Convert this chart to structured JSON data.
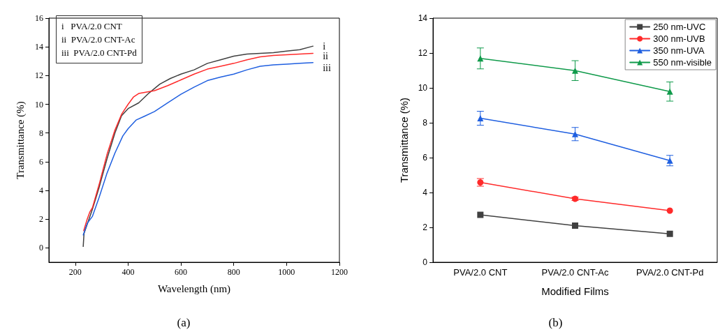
{
  "chart_data": [
    {
      "type": "line",
      "title": "(a)",
      "xlabel": "Wavelength (nm)",
      "ylabel": "Transmittance (%)",
      "xlim": [
        100,
        1200
      ],
      "xticks": [
        200,
        400,
        600,
        800,
        1000,
        1200
      ],
      "ylim": [
        -1,
        16
      ],
      "yticks": [
        0,
        2,
        4,
        6,
        8,
        10,
        12,
        14,
        16
      ],
      "grid": false,
      "legend": false,
      "marker": "none",
      "line_style": "solid",
      "annotations": [
        "i   PVA/2.0 CNT",
        "ii  PVA/2.0 CNT-Ac",
        "iii  PVA/2.0 CNT-Pd"
      ],
      "series": [
        {
          "name": "i",
          "color": "#404040",
          "x": [
            230,
            233,
            250,
            265,
            290,
            320,
            350,
            375,
            400,
            440,
            480,
            520,
            560,
            600,
            650,
            700,
            750,
            800,
            850,
            900,
            950,
            1000,
            1050,
            1100
          ],
          "values": [
            0.1,
            1.0,
            1.9,
            2.7,
            4.2,
            6.2,
            8.0,
            9.2,
            9.7,
            10.1,
            10.8,
            11.4,
            11.8,
            12.1,
            12.4,
            12.85,
            13.1,
            13.35,
            13.5,
            13.55,
            13.6,
            13.7,
            13.8,
            14.05
          ]
        },
        {
          "name": "ii",
          "color": "#ff2a2a",
          "x": [
            232,
            245,
            255,
            265,
            290,
            320,
            350,
            375,
            400,
            420,
            440,
            470,
            500,
            550,
            600,
            650,
            700,
            750,
            800,
            850,
            900,
            950,
            1000,
            1050,
            1100
          ],
          "values": [
            1.2,
            2.0,
            2.5,
            2.8,
            4.4,
            6.5,
            8.2,
            9.3,
            10.0,
            10.5,
            10.75,
            10.85,
            10.95,
            11.3,
            11.7,
            12.1,
            12.45,
            12.65,
            12.85,
            13.1,
            13.3,
            13.4,
            13.45,
            13.5,
            13.55
          ]
        },
        {
          "name": "iii",
          "color": "#1f5fe0",
          "x": [
            230,
            245,
            265,
            290,
            320,
            350,
            380,
            400,
            430,
            460,
            500,
            550,
            600,
            650,
            700,
            750,
            800,
            850,
            900,
            950,
            1000,
            1050,
            1100
          ],
          "values": [
            0.9,
            1.7,
            2.2,
            3.5,
            5.2,
            6.6,
            7.8,
            8.3,
            8.9,
            9.15,
            9.5,
            10.1,
            10.7,
            11.2,
            11.65,
            11.9,
            12.1,
            12.4,
            12.65,
            12.75,
            12.8,
            12.85,
            12.9
          ]
        }
      ]
    },
    {
      "type": "line",
      "title": "(b)",
      "xlabel": "Modified Films",
      "ylabel": "Transmittance (%)",
      "categories": [
        "PVA/2.0 CNT",
        "PVA/2.0 CNT-Ac",
        "PVA/2.0 CNT-Pd"
      ],
      "ylim": [
        0,
        14
      ],
      "yticks": [
        0,
        2,
        4,
        6,
        8,
        10,
        12,
        14
      ],
      "grid": false,
      "legend": "top right",
      "line_style": "solid",
      "series": [
        {
          "name": "250 nm-UVC",
          "color": "#404040",
          "marker": "square",
          "values": [
            2.72,
            2.1,
            1.63
          ]
        },
        {
          "name": "300 nm-UVB",
          "color": "#ff2a2a",
          "marker": "circle",
          "values": [
            4.58,
            3.64,
            2.96
          ],
          "errors": [
            0.22,
            0.1,
            null
          ]
        },
        {
          "name": "350 nm-UVA",
          "color": "#1f5fe0",
          "marker": "triangle",
          "values": [
            8.26,
            7.35,
            5.83
          ],
          "errors": [
            0.4,
            0.38,
            0.3
          ]
        },
        {
          "name": "550 nm-visible",
          "color": "#0f9a4a",
          "marker": "triangle",
          "values": [
            11.69,
            10.99,
            9.79
          ],
          "errors": [
            0.6,
            0.57,
            0.55
          ]
        }
      ]
    }
  ]
}
